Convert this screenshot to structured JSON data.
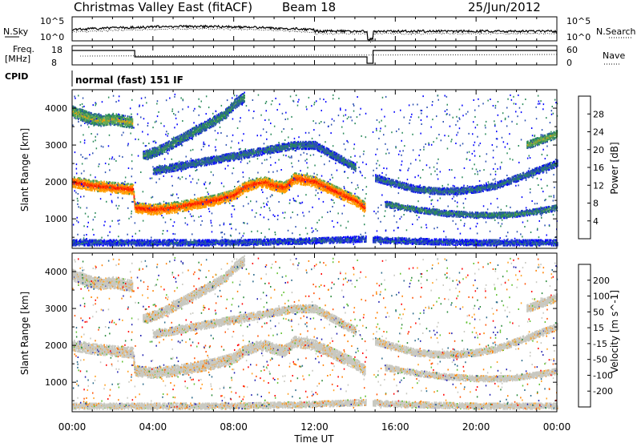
{
  "header": {
    "title": "Christmas Valley East (fitACF)",
    "beam": "Beam 18",
    "date": "25/Jun/2012"
  },
  "top_panels": {
    "nsky_label": "N.Sky",
    "nsearch_label": "N.Search",
    "nsky_ticks": [
      "10^5",
      "10^0"
    ],
    "nsearch_ticks": [
      "10^5",
      "10^0"
    ],
    "freq_label": "Freq.",
    "freq_unit": "[MHz]",
    "freq_ticks": [
      "18",
      "8"
    ],
    "nave_label": "Nave",
    "nave_ticks": [
      "60",
      "0"
    ],
    "cpid_label": "CPID",
    "cpid_value": "normal (fast) 151 IF"
  },
  "colors": {
    "power_scale": [
      "#0000ff",
      "#2a4fb0",
      "#2a8a5a",
      "#6aaa50",
      "#ffa000",
      "#ff6a00",
      "#ff2000",
      "#e80000"
    ],
    "velocity_scale": [
      "#2020b0",
      "#2a6a8a",
      "#2a8a3a",
      "#60c030",
      "#c8c8c0",
      "#c8c8c0",
      "#ffa020",
      "#ff8000",
      "#ff5000",
      "#ff0000"
    ]
  },
  "chart_data": [
    {
      "type": "heatmap",
      "name": "power",
      "xlabel": "",
      "ylabel": "Slant Range [km]",
      "yticks": [
        "1000",
        "2000",
        "3000",
        "4000"
      ],
      "ylim": [
        200,
        4500
      ],
      "xlim": [
        0,
        24
      ],
      "colorbar_label": "Power [dB]",
      "colorbar_ticks": [
        "4",
        "8",
        "12",
        "16",
        "20",
        "24",
        "28"
      ],
      "colorbar_range": [
        0,
        30
      ],
      "bands": [
        {
          "x": [
            0,
            1,
            2,
            3,
            3.1,
            4,
            5,
            6,
            7,
            8,
            8.5,
            9,
            9.5,
            10,
            10.5,
            11,
            12,
            13,
            14,
            14.5
          ],
          "y": [
            2000,
            1900,
            1850,
            1800,
            1300,
            1250,
            1300,
            1400,
            1500,
            1650,
            1850,
            1950,
            2000,
            1900,
            1850,
            2100,
            2000,
            1750,
            1500,
            1300
          ],
          "width": 280,
          "power": 25
        },
        {
          "x": [
            0,
            0.5,
            1,
            1.5,
            2,
            2.5,
            3
          ],
          "y": [
            3900,
            3800,
            3700,
            3650,
            3700,
            3650,
            3600
          ],
          "width": 300,
          "power": 15
        },
        {
          "x": [
            3.5,
            4.5,
            5.5,
            6.5,
            7.5,
            8,
            8.5
          ],
          "y": [
            2700,
            2900,
            3200,
            3500,
            3800,
            4100,
            4300
          ],
          "width": 260,
          "power": 10
        },
        {
          "x": [
            4,
            5,
            6,
            7,
            8,
            9,
            10,
            11,
            12,
            13,
            14
          ],
          "y": [
            2300,
            2400,
            2500,
            2600,
            2700,
            2800,
            2900,
            3000,
            3000,
            2700,
            2400
          ],
          "width": 220,
          "power": 8
        },
        {
          "x": [
            15,
            16,
            17,
            18,
            19,
            20,
            21,
            22,
            23,
            24
          ],
          "y": [
            2100,
            1950,
            1800,
            1750,
            1750,
            1800,
            1900,
            2100,
            2300,
            2500
          ],
          "width": 180,
          "power": 8
        },
        {
          "x": [
            15.5,
            17,
            18.5,
            20,
            21.5,
            23,
            24
          ],
          "y": [
            1400,
            1250,
            1150,
            1100,
            1100,
            1200,
            1300
          ],
          "width": 160,
          "power": 10
        },
        {
          "x": [
            22.5,
            23,
            23.5,
            24
          ],
          "y": [
            3000,
            3100,
            3200,
            3300
          ],
          "width": 220,
          "power": 14
        },
        {
          "x": [
            0,
            4,
            8,
            12,
            14.5,
            16,
            20,
            24
          ],
          "y": [
            350,
            350,
            350,
            400,
            450,
            400,
            350,
            350
          ],
          "width": 150,
          "power": 6
        }
      ]
    },
    {
      "type": "heatmap",
      "name": "velocity",
      "xlabel": "Time UT",
      "ylabel": "Slant Range [km]",
      "xticks": [
        "00:00",
        "04:00",
        "08:00",
        "12:00",
        "16:00",
        "20:00",
        "00:00"
      ],
      "yticks": [
        "1000",
        "2000",
        "3000",
        "4000"
      ],
      "ylim": [
        200,
        4500
      ],
      "xlim": [
        0,
        24
      ],
      "colorbar_label": "Velocity [m s^-1]",
      "colorbar_ticks": [
        "200",
        "100",
        "50",
        "15",
        "-15",
        "-50",
        "-100",
        "-200"
      ],
      "colorbar_range": [
        -250,
        250
      ]
    }
  ]
}
